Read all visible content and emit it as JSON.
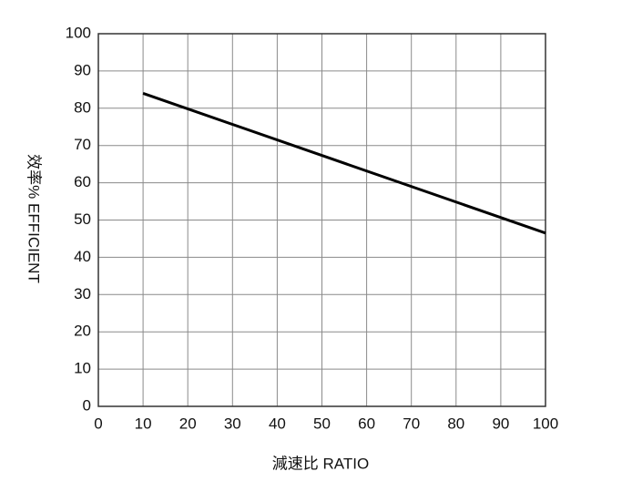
{
  "chart_data": {
    "type": "line",
    "x_label": "減速比 RATIO",
    "y_label": "效率% EFFICIENT",
    "x": [
      10,
      100
    ],
    "values": [
      84,
      46.5
    ],
    "color": "#000000",
    "xlim": [
      0,
      100
    ],
    "xticks": [
      0,
      10,
      20,
      30,
      40,
      50,
      60,
      70,
      80,
      90,
      100
    ],
    "ylim": [
      0,
      100
    ],
    "yticks": [
      0,
      10,
      20,
      30,
      40,
      50,
      60,
      70,
      80,
      90,
      100
    ],
    "grid": true
  }
}
